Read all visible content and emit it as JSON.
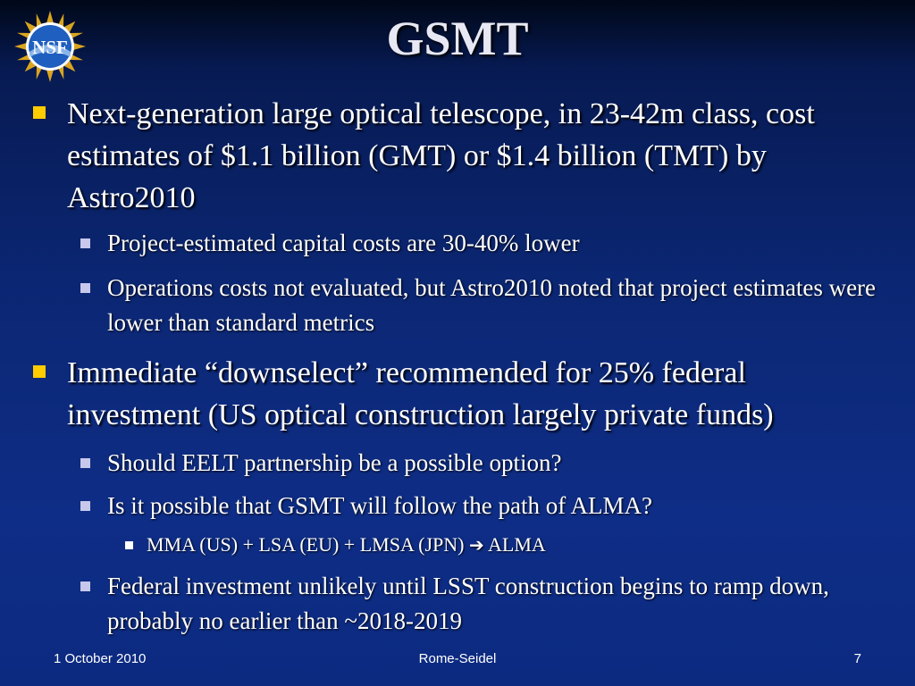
{
  "logo": {
    "text": "NSF"
  },
  "slide": {
    "title": "GSMT",
    "bullets": [
      "Next-generation large optical telescope, in 23-42m class, cost estimates of $1.1 billion (GMT) or $1.4 billion (TMT) by Astro2010",
      "Project-estimated capital costs are 30-40% lower",
      "Operations costs not evaluated, but Astro2010 noted that project estimates were lower than standard metrics",
      "Immediate “downselect” recommended for 25% federal investment (US optical construction largely private funds)",
      "Should EELT partnership be a possible option?",
      "Is it possible that GSMT will follow the path of ALMA?",
      "MMA (US) + LSA (EU) + LMSA (JPN)",
      "ALMA",
      "Federal investment unlikely until LSST construction begins to ramp down, probably no earlier than ~2018-2019"
    ]
  },
  "footer": {
    "date": "1 October 2010",
    "author": "Rome-Seidel",
    "page": "7"
  }
}
